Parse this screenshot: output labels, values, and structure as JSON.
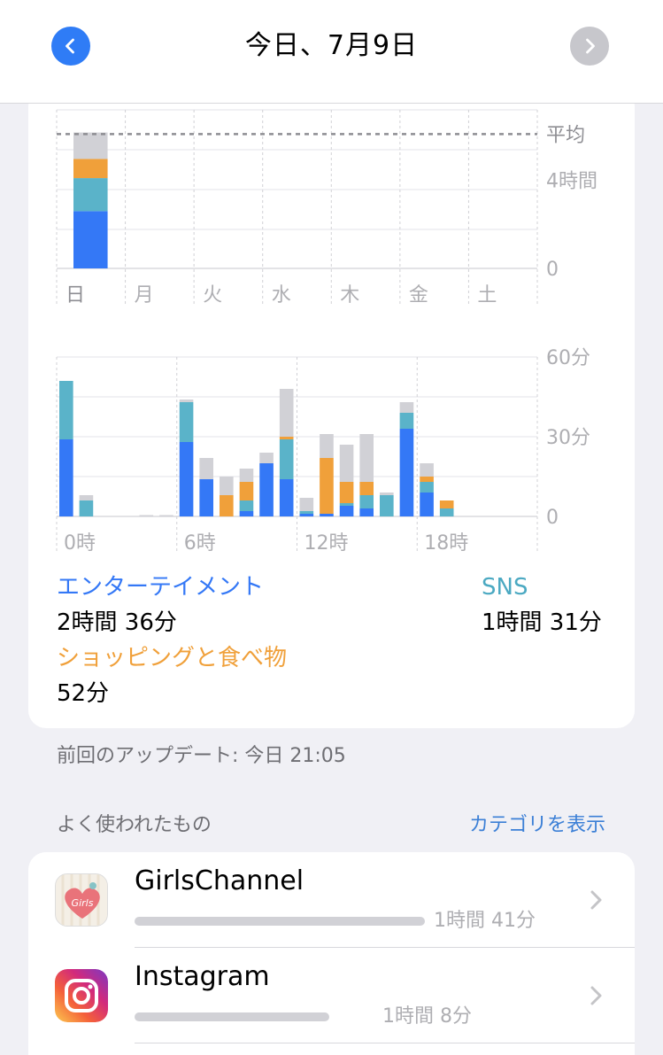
{
  "header": {
    "title": "今日、7月9日",
    "prev_icon": "chevron-left-icon",
    "next_icon": "chevron-right-icon"
  },
  "colors": {
    "entertainment": "#3478f6",
    "sns": "#5ab3c9",
    "shopping": "#f0a03a",
    "other": "#d1d1d6",
    "accent": "#2f7cf6"
  },
  "chart_data": [
    {
      "type": "bar",
      "stacked": true,
      "categories": [
        "日",
        "月",
        "火",
        "水",
        "木",
        "金",
        "土"
      ],
      "series": [
        {
          "name": "エンターテイメント",
          "values": [
            2.6,
            0,
            0,
            0,
            0,
            0,
            0
          ]
        },
        {
          "name": "SNS",
          "values": [
            1.5,
            0,
            0,
            0,
            0,
            0,
            0
          ]
        },
        {
          "name": "ショッピングと食べ物",
          "values": [
            0.87,
            0,
            0,
            0,
            0,
            0,
            0
          ]
        },
        {
          "series_key": "other",
          "values": [
            1.2,
            0,
            0,
            0,
            0,
            0,
            0
          ]
        }
      ],
      "y_ticks": [
        "0",
        "4時間"
      ],
      "y_tick_values": [
        0,
        4
      ],
      "average_label": "平均",
      "average_value": 6.1,
      "ylim": [
        0,
        7.2
      ],
      "grid": true
    },
    {
      "type": "bar",
      "stacked": true,
      "categories": [
        "0",
        "1",
        "2",
        "3",
        "4",
        "5",
        "6",
        "7",
        "8",
        "9",
        "10",
        "11",
        "12",
        "13",
        "14",
        "15",
        "16",
        "17",
        "18",
        "19",
        "20",
        "21",
        "22",
        "23"
      ],
      "x_tick_labels": [
        "0時",
        "6時",
        "12時",
        "18時"
      ],
      "x_tick_positions": [
        0,
        6,
        12,
        18
      ],
      "series": [
        {
          "name": "エンターテイメント",
          "values": [
            29,
            0,
            0,
            0,
            0,
            0,
            28,
            14,
            0,
            2,
            20,
            14,
            1,
            1,
            4,
            3,
            0,
            33,
            9,
            0,
            0,
            0,
            0,
            0
          ]
        },
        {
          "name": "SNS",
          "values": [
            22,
            6,
            0,
            0,
            0,
            0,
            15,
            0,
            0,
            4,
            0,
            15,
            1,
            0,
            1,
            5,
            8,
            6,
            4,
            3,
            0,
            0,
            0,
            0
          ]
        },
        {
          "name": "ショッピングと食べ物",
          "values": [
            0,
            0,
            0,
            0,
            0,
            0,
            0,
            0,
            8,
            7,
            0,
            1,
            0,
            21,
            8,
            5,
            0,
            0,
            2,
            3,
            0,
            0,
            0,
            0
          ]
        },
        {
          "series_key": "other",
          "values": [
            0,
            2,
            0,
            0,
            0.5,
            0.5,
            1,
            8,
            7,
            5,
            4,
            18,
            5,
            9,
            14,
            18,
            1,
            4,
            5,
            0,
            0,
            0,
            0,
            0
          ]
        }
      ],
      "y_ticks": [
        "0",
        "30分",
        "60分"
      ],
      "y_tick_values": [
        0,
        30,
        60
      ],
      "ylim": [
        0,
        60
      ],
      "grid": true
    }
  ],
  "legend": [
    {
      "label": "エンターテイメント",
      "value": "2時間 36分"
    },
    {
      "label": "SNS",
      "value": "1時間 31分"
    },
    {
      "label": "ショッピングと食べ物",
      "value": "52分"
    }
  ],
  "footer": {
    "updated": "前回のアップデート: 今日 21:05"
  },
  "most_used": {
    "title": "よく使われたもの",
    "link": "カテゴリを表示",
    "apps": [
      {
        "name": "GirlsChannel",
        "time": "1時間 41分",
        "icon": "girlschannel-app-icon",
        "icon_text": "Girls",
        "share": 1.0
      },
      {
        "name": "Instagram",
        "time": "1時間 8分",
        "icon": "instagram-app-icon",
        "share": 0.67
      }
    ]
  }
}
